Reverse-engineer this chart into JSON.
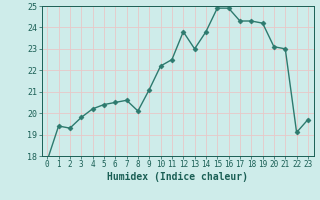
{
  "x": [
    0,
    1,
    2,
    3,
    4,
    5,
    6,
    7,
    8,
    9,
    10,
    11,
    12,
    13,
    14,
    15,
    16,
    17,
    18,
    19,
    20,
    21,
    22,
    23
  ],
  "y": [
    17.8,
    19.4,
    19.3,
    19.8,
    20.2,
    20.4,
    20.5,
    20.6,
    20.1,
    21.1,
    22.2,
    22.5,
    23.8,
    23.0,
    23.8,
    24.9,
    24.9,
    24.3,
    24.3,
    24.2,
    23.1,
    23.0,
    19.1,
    19.7
  ],
  "line_color": "#2d7a6e",
  "marker": "D",
  "markersize": 2.5,
  "linewidth": 1.0,
  "xlabel": "Humidex (Indice chaleur)",
  "ylim": [
    18,
    25
  ],
  "xlim": [
    -0.5,
    23.5
  ],
  "yticks": [
    18,
    19,
    20,
    21,
    22,
    23,
    24,
    25
  ],
  "xticks": [
    0,
    1,
    2,
    3,
    4,
    5,
    6,
    7,
    8,
    9,
    10,
    11,
    12,
    13,
    14,
    15,
    16,
    17,
    18,
    19,
    20,
    21,
    22,
    23
  ],
  "bg_color": "#ceecea",
  "grid_color": "#e8c8c8",
  "tick_color": "#1a5f55",
  "label_color": "#1a5f55"
}
